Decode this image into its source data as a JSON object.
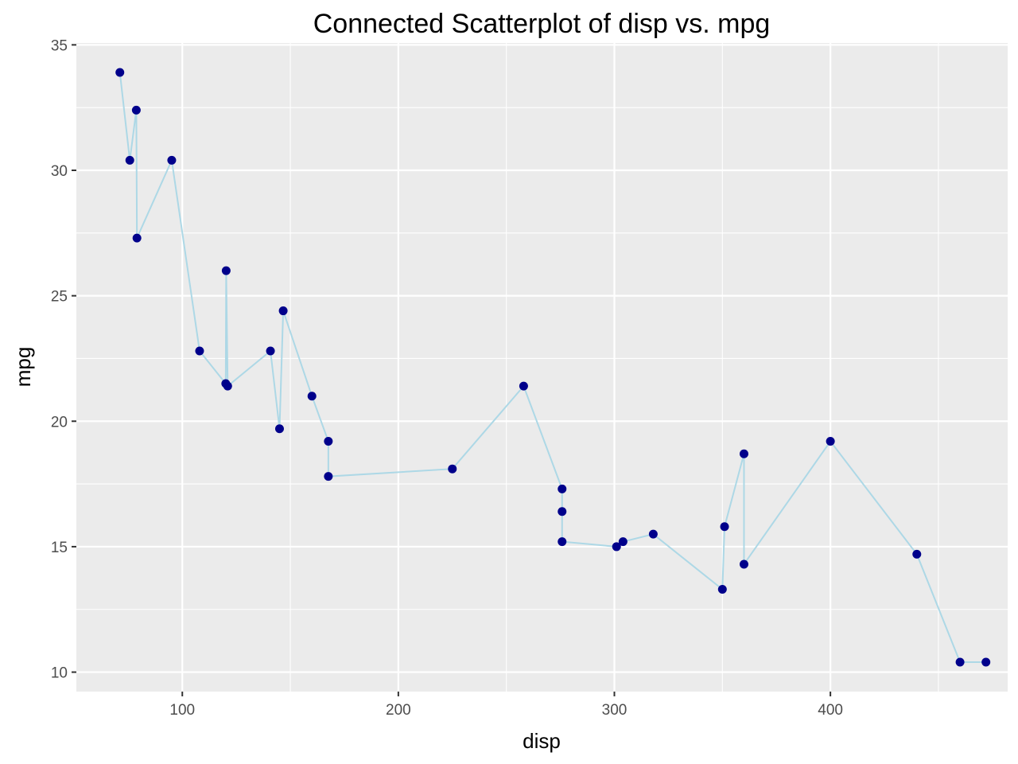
{
  "chart_data": {
    "type": "scatter",
    "title": "Connected Scatterplot of disp vs. mpg",
    "xlabel": "disp",
    "ylabel": "mpg",
    "xlim": [
      50.95,
      482.05
    ],
    "ylim": [
      9.225,
      35.075
    ],
    "xticks": [
      100,
      200,
      300,
      400
    ],
    "xtick_labels": [
      "100",
      "200",
      "300",
      "400"
    ],
    "yticks": [
      10,
      15,
      20,
      25,
      30,
      35
    ],
    "ytick_labels": [
      "10",
      "15",
      "20",
      "25",
      "30",
      "35"
    ],
    "grid": true,
    "legend": "none",
    "connected": true,
    "colors": {
      "panel": "#EBEBEB",
      "grid": "#FFFFFF",
      "line": "#ADD8E6",
      "point": "#00008B",
      "tick": "#333333"
    },
    "series": [
      {
        "x": [
          71.1,
          75.7,
          78.7,
          79.0,
          95.1,
          108.0,
          120.1,
          120.3,
          121.0,
          140.8,
          145.0,
          146.7,
          160.0,
          167.6,
          167.6,
          225.0,
          258.0,
          275.8,
          275.8,
          275.8,
          301.0,
          304.0,
          318.0,
          350.0,
          351.0,
          360.0,
          360.0,
          400.0,
          440.0,
          460.0,
          472.0
        ],
        "y": [
          33.9,
          30.4,
          32.4,
          27.3,
          30.4,
          22.8,
          21.5,
          26.0,
          21.4,
          22.8,
          19.7,
          24.4,
          21.0,
          19.2,
          17.8,
          18.1,
          21.4,
          17.3,
          16.4,
          15.2,
          15.0,
          15.2,
          15.5,
          13.3,
          15.8,
          18.7,
          14.3,
          19.2,
          14.7,
          10.4,
          10.4
        ]
      }
    ]
  }
}
